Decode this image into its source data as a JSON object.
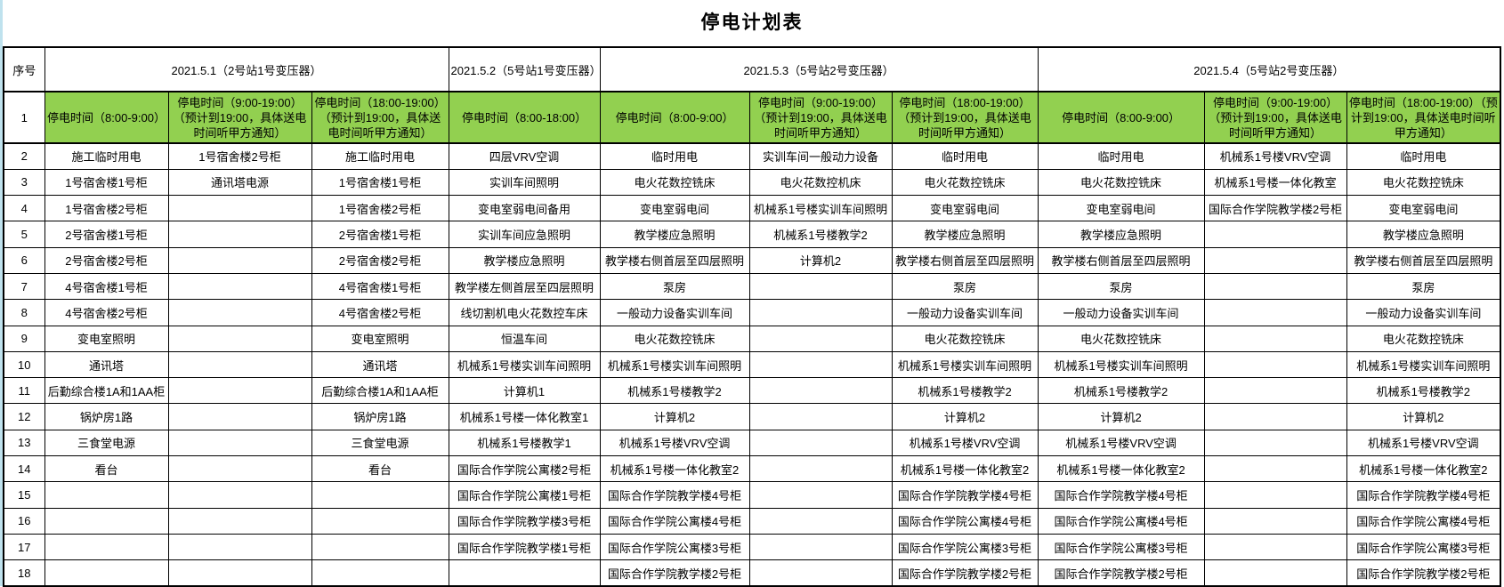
{
  "title": "停电计划表",
  "colors": {
    "highlight_green": "#92d050",
    "left_strip": "#bfe2ee",
    "border": "#000000",
    "background": "#ffffff"
  },
  "header": {
    "index_label": "序号",
    "date_groups": [
      {
        "label": "2021.5.1（2号站1号变压器）",
        "span": 3
      },
      {
        "label": "2021.5.2（5号站1号变压器）",
        "span": 1
      },
      {
        "label": "2021.5.3（5号站2号变压器）",
        "span": 3
      },
      {
        "label": "2021.5.4（5号站2号变压器）",
        "span": 3
      }
    ]
  },
  "time_row": {
    "index": "1",
    "cells": [
      "停电时间（8:00-9:00）",
      "停电时间（9:00-19:00）（预计到19:00，具体送电时间听甲方通知）",
      "停电时间（18:00-19:00）（预计到19:00，具体送电时间听甲方通知）",
      "停电时间（8:00-18:00）",
      "停电时间（8:00-9:00）",
      "停电时间（9:00-19:00）（预计到19:00，具体送电时间听甲方通知）",
      "停电时间（18:00-19:00）（预计到19:00，具体送电时间听甲方通知）",
      "停电时间（8:00-9:00）",
      "停电时间（9:00-19:00）（预计到19:00，具体送电时间听甲方通知）",
      "停电时间（18:00-19:00）（预计到19:00，具体送电时间听甲方通知）"
    ]
  },
  "rows": [
    {
      "index": "2",
      "cells": [
        "施工临时用电",
        "1号宿舍楼2号柜",
        "施工临时用电",
        "四层VRV空调",
        "临时用电",
        "实训车间一般动力设备",
        "临时用电",
        "临时用电",
        "机械系1号楼VRV空调",
        "临时用电"
      ]
    },
    {
      "index": "3",
      "cells": [
        "1号宿舍楼1号柜",
        "通讯塔电源",
        "1号宿舍楼1号柜",
        "实训车间照明",
        "电火花数控铣床",
        "电火花数控机床",
        "电火花数控铣床",
        "电火花数控铣床",
        "机械系1号楼一体化教室",
        "电火花数控铣床"
      ]
    },
    {
      "index": "4",
      "cells": [
        "1号宿舍楼2号柜",
        "",
        "1号宿舍楼2号柜",
        "变电室弱电间备用",
        "变电室弱电间",
        "机械系1号楼实训车间照明",
        "变电室弱电间",
        "变电室弱电间",
        "国际合作学院教学楼2号柜",
        "变电室弱电间"
      ]
    },
    {
      "index": "5",
      "cells": [
        "2号宿舍楼1号柜",
        "",
        "2号宿舍楼1号柜",
        "实训车间应急照明",
        "教学楼应急照明",
        "机械系1号楼教学2",
        "教学楼应急照明",
        "教学楼应急照明",
        "",
        "教学楼应急照明"
      ]
    },
    {
      "index": "6",
      "cells": [
        "2号宿舍楼2号柜",
        "",
        "2号宿舍楼2号柜",
        "教学楼应急照明",
        "教学楼右侧首层至四层照明",
        "计算机2",
        "教学楼右侧首层至四层照明",
        "教学楼右侧首层至四层照明",
        "",
        "教学楼右侧首层至四层照明"
      ]
    },
    {
      "index": "7",
      "cells": [
        "4号宿舍楼1号柜",
        "",
        "4号宿舍楼1号柜",
        "教学楼左侧首层至四层照明",
        "泵房",
        "",
        "泵房",
        "泵房",
        "",
        "泵房"
      ]
    },
    {
      "index": "8",
      "cells": [
        "4号宿舍楼2号柜",
        "",
        "4号宿舍楼2号柜",
        "线切割机电火花数控车床",
        "一般动力设备实训车间",
        "",
        "一般动力设备实训车间",
        "一般动力设备实训车间",
        "",
        "一般动力设备实训车间"
      ]
    },
    {
      "index": "9",
      "cells": [
        "变电室照明",
        "",
        "变电室照明",
        "恒温车间",
        "电火花数控铣床",
        "",
        "电火花数控铣床",
        "电火花数控铣床",
        "",
        "电火花数控铣床"
      ]
    },
    {
      "index": "10",
      "cells": [
        "通讯塔",
        "",
        "通讯塔",
        "机械系1号楼实训车间照明",
        "机械系1号楼实训车间照明",
        "",
        "机械系1号楼实训车间照明",
        "机械系1号楼实训车间照明",
        "",
        "机械系1号楼实训车间照明"
      ]
    },
    {
      "index": "11",
      "cells": [
        "后勤综合楼1A和1AA柜",
        "",
        "后勤综合楼1A和1AA柜",
        "计算机1",
        "机械系1号楼教学2",
        "",
        "机械系1号楼教学2",
        "机械系1号楼教学2",
        "",
        "机械系1号楼教学2"
      ]
    },
    {
      "index": "12",
      "cells": [
        "锅炉房1路",
        "",
        "锅炉房1路",
        "机械系1号楼一体化教室1",
        "计算机2",
        "",
        "计算机2",
        "计算机2",
        "",
        "计算机2"
      ]
    },
    {
      "index": "13",
      "cells": [
        "三食堂电源",
        "",
        "三食堂电源",
        "机械系1号楼教学1",
        "机械系1号楼VRV空调",
        "",
        "机械系1号楼VRV空调",
        "机械系1号楼VRV空调",
        "",
        "机械系1号楼VRV空调"
      ]
    },
    {
      "index": "14",
      "cells": [
        "看台",
        "",
        "看台",
        "国际合作学院公寓楼2号柜",
        "机械系1号楼一体化教室2",
        "",
        "机械系1号楼一体化教室2",
        "机械系1号楼一体化教室2",
        "",
        "机械系1号楼一体化教室2"
      ]
    },
    {
      "index": "15",
      "cells": [
        "",
        "",
        "",
        "国际合作学院公寓楼1号柜",
        "国际合作学院教学楼4号柜",
        "",
        "国际合作学院教学楼4号柜",
        "国际合作学院教学楼4号柜",
        "",
        "国际合作学院教学楼4号柜"
      ]
    },
    {
      "index": "16",
      "cells": [
        "",
        "",
        "",
        "国际合作学院教学楼3号柜",
        "国际合作学院公寓楼4号柜",
        "",
        "国际合作学院公寓楼4号柜",
        "国际合作学院公寓楼4号柜",
        "",
        "国际合作学院公寓楼4号柜"
      ]
    },
    {
      "index": "17",
      "cells": [
        "",
        "",
        "",
        "国际合作学院教学楼1号柜",
        "国际合作学院公寓楼3号柜",
        "",
        "国际合作学院公寓楼3号柜",
        "国际合作学院公寓楼3号柜",
        "",
        "国际合作学院公寓楼3号柜"
      ]
    },
    {
      "index": "18",
      "cells": [
        "",
        "",
        "",
        "",
        "国际合作学院教学楼2号柜",
        "",
        "国际合作学院教学楼2号柜",
        "国际合作学院教学楼2号柜",
        "",
        "国际合作学院教学楼2号柜"
      ]
    }
  ]
}
